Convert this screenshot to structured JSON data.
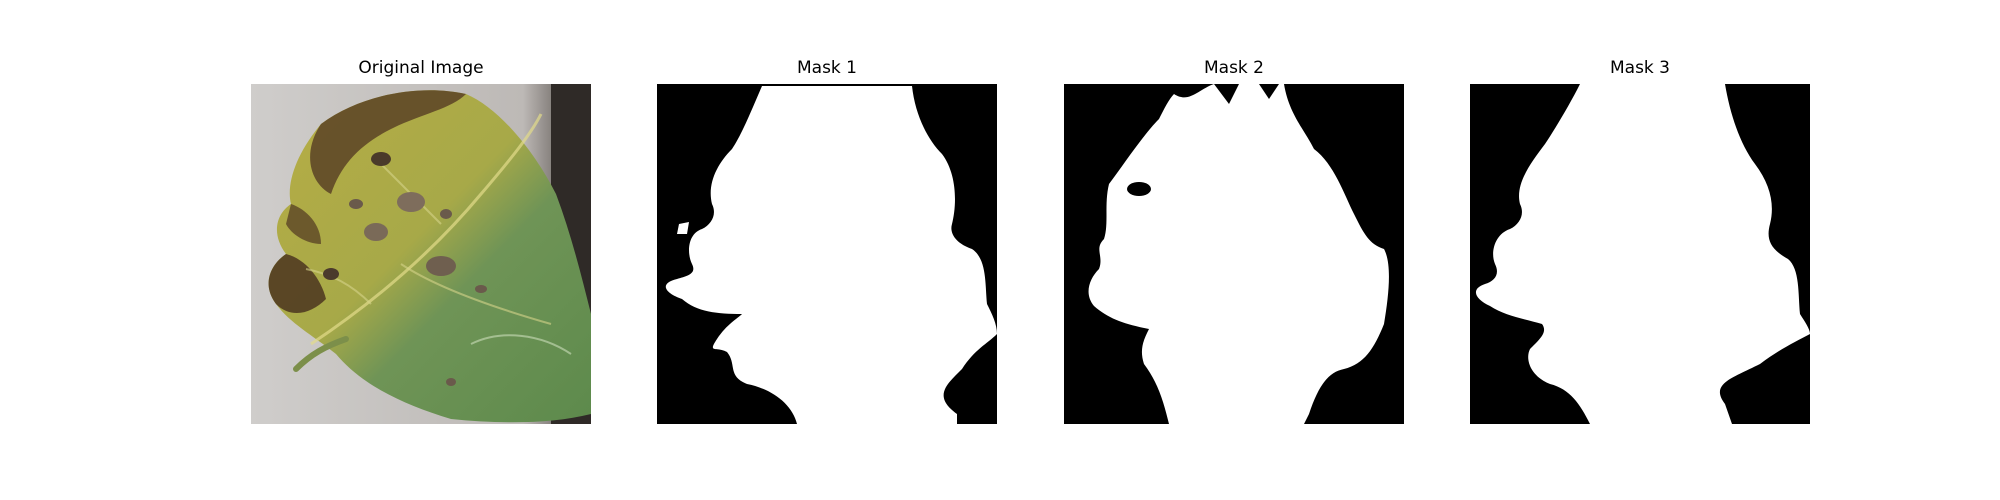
{
  "figure": {
    "panels": [
      {
        "title": "Original Image",
        "content": "tomato-leaf-photo"
      },
      {
        "title": "Mask 1",
        "content": "binary-segmentation-mask"
      },
      {
        "title": "Mask 2",
        "content": "binary-segmentation-mask"
      },
      {
        "title": "Mask 3",
        "content": "binary-segmentation-mask"
      }
    ],
    "colors": {
      "background": "#ffffff",
      "mask_foreground": "#ffffff",
      "mask_background": "#000000",
      "photo_backdrop": "#c9c6c4",
      "leaf_yellow": "#bdb24a",
      "leaf_green": "#6f9456",
      "leaf_edge_brown": "#5a4226"
    }
  }
}
